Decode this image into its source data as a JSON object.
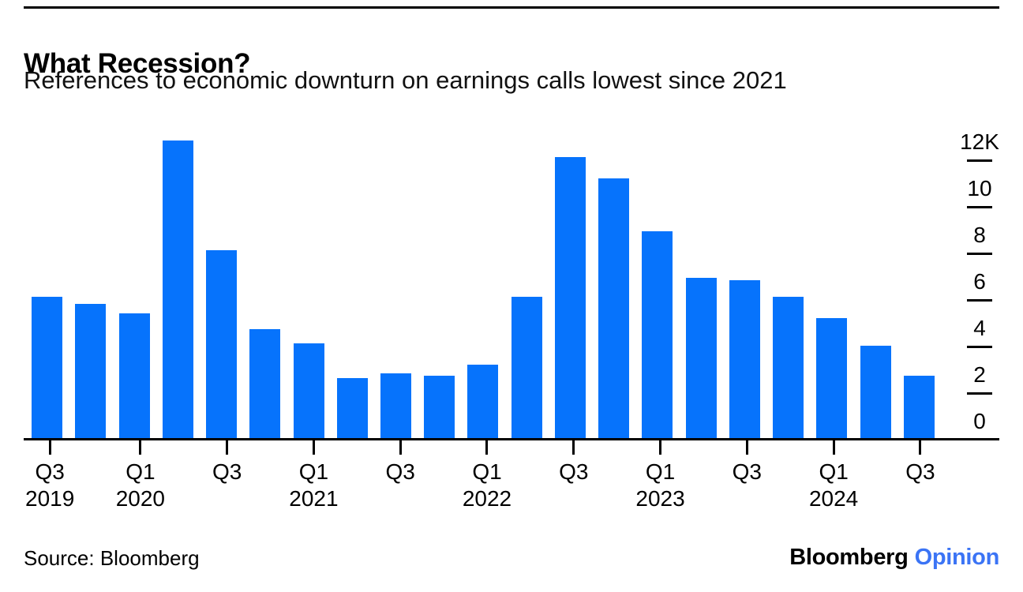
{
  "header": {
    "title": "What Recession?",
    "subtitle": "References to economic downturn on earnings calls lowest since 2021"
  },
  "footer": {
    "source": "Source: Bloomberg",
    "brand": "Bloomberg",
    "brand_suffix": "Opinion"
  },
  "colors": {
    "bar_blue": "#0673fc",
    "opinion_blue": "#3b74f5",
    "axis_black": "#000000"
  },
  "chart_data": {
    "type": "bar",
    "title": "What Recession?",
    "subtitle": "References to economic downturn on earnings calls lowest since 2021",
    "unit": "thousands of mentions",
    "categories": [
      "Q3 2019",
      "Q4 2019",
      "Q1 2020",
      "Q2 2020",
      "Q3 2020",
      "Q4 2020",
      "Q1 2021",
      "Q2 2021",
      "Q3 2021",
      "Q4 2021",
      "Q1 2022",
      "Q2 2022",
      "Q3 2022",
      "Q4 2022",
      "Q1 2023",
      "Q2 2023",
      "Q3 2023",
      "Q4 2023",
      "Q1 2024",
      "Q2 2024",
      "Q3 2024"
    ],
    "values": [
      6.1,
      5.8,
      5.4,
      12.8,
      8.1,
      4.7,
      4.1,
      2.6,
      2.8,
      2.7,
      3.2,
      6.1,
      12.1,
      11.2,
      8.9,
      6.9,
      6.8,
      6.1,
      5.2,
      4.0,
      2.7
    ],
    "y_axis": {
      "side": "right",
      "ylim": [
        0,
        13.4
      ],
      "ticks": [
        {
          "label": "12K",
          "value": 12
        },
        {
          "label": "10",
          "value": 10
        },
        {
          "label": "8",
          "value": 8
        },
        {
          "label": "6",
          "value": 6
        },
        {
          "label": "4",
          "value": 4
        },
        {
          "label": "2",
          "value": 2
        },
        {
          "label": "0",
          "value": 0
        }
      ]
    },
    "x_ticks": [
      {
        "index": 0,
        "quarter": "Q3",
        "year": "2019"
      },
      {
        "index": 2,
        "quarter": "Q1",
        "year": "2020"
      },
      {
        "index": 4,
        "quarter": "Q3",
        "year": ""
      },
      {
        "index": 6,
        "quarter": "Q1",
        "year": "2021"
      },
      {
        "index": 8,
        "quarter": "Q3",
        "year": ""
      },
      {
        "index": 10,
        "quarter": "Q1",
        "year": "2022"
      },
      {
        "index": 12,
        "quarter": "Q3",
        "year": ""
      },
      {
        "index": 14,
        "quarter": "Q1",
        "year": "2023"
      },
      {
        "index": 16,
        "quarter": "Q3",
        "year": ""
      },
      {
        "index": 18,
        "quarter": "Q1",
        "year": "2024"
      },
      {
        "index": 20,
        "quarter": "Q3",
        "year": ""
      }
    ],
    "grid": false,
    "legend": "none"
  }
}
